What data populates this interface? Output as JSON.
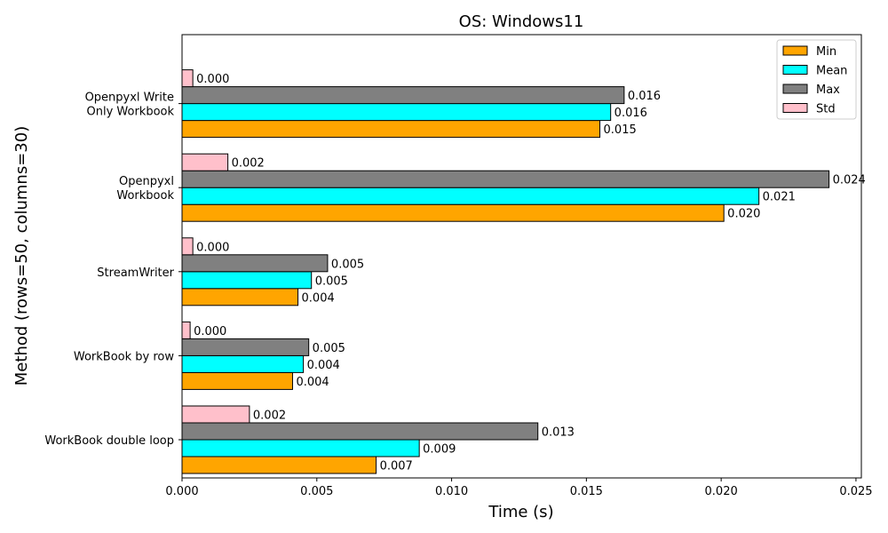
{
  "chart_data": {
    "type": "bar",
    "orientation": "horizontal",
    "title": "OS: Windows11",
    "xlabel": "Time (s)",
    "ylabel": "Method (rows=50, columns=30)",
    "xlim": [
      0,
      0.0252
    ],
    "xticks": [
      "0.000",
      "0.005",
      "0.010",
      "0.015",
      "0.020",
      "0.025"
    ],
    "grid": false,
    "legend_position": "top-right",
    "categories": [
      "WorkBook double loop",
      "WorkBook by row",
      "StreamWriter",
      "Openpyxl\nWorkbook",
      "Openpyxl Write\nOnly Workbook"
    ],
    "series": [
      {
        "name": "Min",
        "color": "#ffa500",
        "values": [
          0.0072,
          0.0041,
          0.0043,
          0.0201,
          0.0155
        ],
        "labels": [
          "0.007",
          "0.004",
          "0.004",
          "0.020",
          "0.015"
        ]
      },
      {
        "name": "Mean",
        "color": "#00ffff",
        "values": [
          0.0088,
          0.0045,
          0.0048,
          0.0214,
          0.0159
        ],
        "labels": [
          "0.009",
          "0.004",
          "0.005",
          "0.021",
          "0.016"
        ]
      },
      {
        "name": "Max",
        "color": "#808080",
        "values": [
          0.0132,
          0.0047,
          0.0054,
          0.024,
          0.0164
        ],
        "labels": [
          "0.013",
          "0.005",
          "0.005",
          "0.024",
          "0.016"
        ]
      },
      {
        "name": "Std",
        "color": "#ffc0cb",
        "values": [
          0.0025,
          0.0003,
          0.0004,
          0.0017,
          0.0004
        ],
        "labels": [
          "0.002",
          "0.000",
          "0.000",
          "0.002",
          "0.000"
        ]
      }
    ]
  }
}
